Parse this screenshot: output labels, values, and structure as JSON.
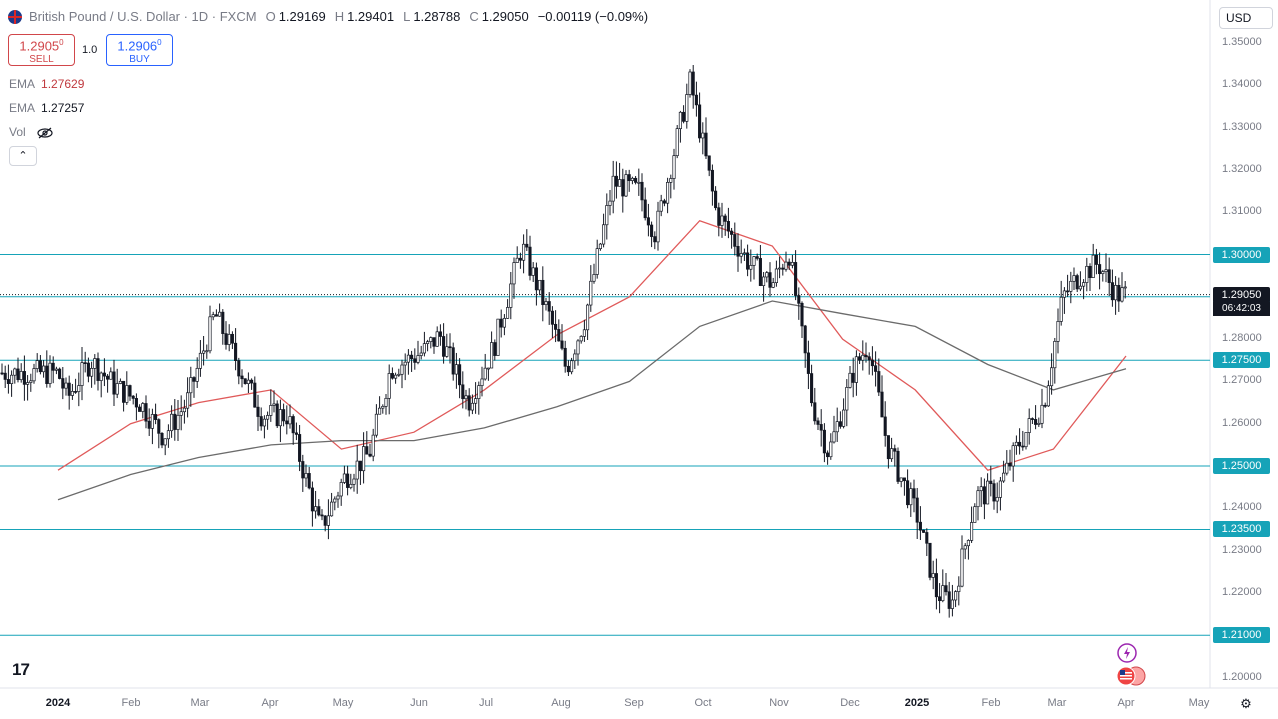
{
  "header": {
    "symbol_title": "British Pound / U.S. Dollar · 1D · FXCM",
    "open_label": "O",
    "open": "1.29169",
    "high_label": "H",
    "high": "1.29401",
    "low_label": "L",
    "low": "1.28788",
    "close_label": "C",
    "close": "1.29050",
    "change": "−0.00119 (−0.09%)"
  },
  "trade": {
    "sell_price": "1.2905",
    "sell_sup": "0",
    "sell_label": "SELL",
    "spread": "1.0",
    "buy_price": "1.2906",
    "buy_sup": "0",
    "buy_label": "BUY"
  },
  "indicators": {
    "ema1_label": "EMA",
    "ema1_value": "1.27629",
    "ema2_label": "EMA",
    "ema2_value": "1.27257",
    "vol_label": "Vol"
  },
  "currency": "USD",
  "icons": {
    "flag": "gbp-usd-flag-icon",
    "eye": "eye-hidden-icon",
    "chevron": "chevron-up-icon",
    "gear": "gear-icon",
    "logo": "tradingview-logo",
    "flash": "flash-icon",
    "flag_us": "us-flag-icon"
  },
  "colors": {
    "level_line": "#16a3b8",
    "ema_fast": "#e05a5a",
    "ema_slow": "#6b6b6b",
    "candle": "#131722",
    "badge_bg": "#16a3b8"
  },
  "logo_text": "17",
  "chart_data": {
    "type": "candlestick",
    "title": "British Pound / U.S. Dollar · 1D · FXCM",
    "y_axis": {
      "ticks": [
        "1.35000",
        "1.34000",
        "1.33000",
        "1.32000",
        "1.31000",
        "1.28000",
        "1.27000",
        "1.26000",
        "1.24000",
        "1.23000",
        "1.22000",
        "1.20000"
      ],
      "range": [
        1.195,
        1.355
      ]
    },
    "x_axis": {
      "ticks": [
        "2024",
        "Feb",
        "Mar",
        "Apr",
        "May",
        "Jun",
        "Jul",
        "Aug",
        "Sep",
        "Oct",
        "Nov",
        "Dec",
        "2025",
        "Feb",
        "Mar",
        "Apr",
        "May"
      ],
      "bold_ticks": [
        "2024",
        "2025"
      ]
    },
    "horizontal_levels": [
      {
        "value": 1.3,
        "label": "1.30000"
      },
      {
        "value": 1.29,
        "label": "1.29000"
      },
      {
        "value": 1.275,
        "label": "1.27500"
      },
      {
        "value": 1.25,
        "label": "1.25000"
      },
      {
        "value": 1.235,
        "label": "1.23500"
      },
      {
        "value": 1.21,
        "label": "1.21000"
      }
    ],
    "last_price": {
      "value": 1.2905,
      "label": "1.29050",
      "countdown": "06:42:03"
    },
    "series": [
      {
        "name": "EMA",
        "value": "1.27629",
        "color": "#e05a5a",
        "points": [
          [
            "2024-01-01",
            1.249
          ],
          [
            "2024-02-01",
            1.26
          ],
          [
            "2024-03-01",
            1.265
          ],
          [
            "2024-04-01",
            1.268
          ],
          [
            "2024-05-01",
            1.254
          ],
          [
            "2024-06-01",
            1.258
          ],
          [
            "2024-07-01",
            1.268
          ],
          [
            "2024-08-01",
            1.281
          ],
          [
            "2024-09-01",
            1.29
          ],
          [
            "2024-10-01",
            1.308
          ],
          [
            "2024-11-01",
            1.302
          ],
          [
            "2024-12-01",
            1.28
          ],
          [
            "2025-01-01",
            1.268
          ],
          [
            "2025-02-01",
            1.249
          ],
          [
            "2025-03-01",
            1.254
          ],
          [
            "2025-04-01",
            1.276
          ]
        ]
      },
      {
        "name": "EMA",
        "value": "1.27257",
        "color": "#6b6b6b",
        "points": [
          [
            "2024-01-01",
            1.242
          ],
          [
            "2024-02-01",
            1.248
          ],
          [
            "2024-03-01",
            1.252
          ],
          [
            "2024-04-01",
            1.255
          ],
          [
            "2024-05-01",
            1.256
          ],
          [
            "2024-06-01",
            1.256
          ],
          [
            "2024-07-01",
            1.259
          ],
          [
            "2024-08-01",
            1.264
          ],
          [
            "2024-09-01",
            1.27
          ],
          [
            "2024-10-01",
            1.283
          ],
          [
            "2024-11-01",
            1.289
          ],
          [
            "2024-12-01",
            1.286
          ],
          [
            "2025-01-01",
            1.283
          ],
          [
            "2025-02-01",
            1.274
          ],
          [
            "2025-03-01",
            1.268
          ],
          [
            "2025-04-01",
            1.273
          ]
        ]
      }
    ],
    "price_path": [
      [
        "2024-01-01",
        1.272
      ],
      [
        "2024-01-05",
        1.266
      ],
      [
        "2024-01-15",
        1.275
      ],
      [
        "2024-01-25",
        1.269
      ],
      [
        "2024-02-05",
        1.265
      ],
      [
        "2024-02-15",
        1.257
      ],
      [
        "2024-02-25",
        1.265
      ],
      [
        "2024-03-08",
        1.286
      ],
      [
        "2024-03-18",
        1.274
      ],
      [
        "2024-03-28",
        1.262
      ],
      [
        "2024-04-08",
        1.262
      ],
      [
        "2024-04-22",
        1.235
      ],
      [
        "2024-05-02",
        1.247
      ],
      [
        "2024-05-13",
        1.253
      ],
      [
        "2024-05-22",
        1.273
      ],
      [
        "2024-06-05",
        1.277
      ],
      [
        "2024-06-12",
        1.281
      ],
      [
        "2024-06-24",
        1.265
      ],
      [
        "2024-07-05",
        1.278
      ],
      [
        "2024-07-17",
        1.302
      ],
      [
        "2024-07-29",
        1.285
      ],
      [
        "2024-08-05",
        1.273
      ],
      [
        "2024-08-13",
        1.285
      ],
      [
        "2024-08-25",
        1.317
      ],
      [
        "2024-09-05",
        1.315
      ],
      [
        "2024-09-12",
        1.305
      ],
      [
        "2024-09-27",
        1.341
      ],
      [
        "2024-10-02",
        1.327
      ],
      [
        "2024-10-08",
        1.31
      ],
      [
        "2024-10-22",
        1.298
      ],
      [
        "2024-11-01",
        1.293
      ],
      [
        "2024-11-08",
        1.301
      ],
      [
        "2024-11-18",
        1.265
      ],
      [
        "2024-11-25",
        1.253
      ],
      [
        "2024-12-06",
        1.273
      ],
      [
        "2024-12-12",
        1.279
      ],
      [
        "2024-12-20",
        1.255
      ],
      [
        "2025-01-02",
        1.238
      ],
      [
        "2025-01-10",
        1.22
      ],
      [
        "2025-01-17",
        1.218
      ],
      [
        "2025-01-27",
        1.243
      ],
      [
        "2025-02-05",
        1.244
      ],
      [
        "2025-02-14",
        1.255
      ],
      [
        "2025-02-25",
        1.265
      ],
      [
        "2025-03-05",
        1.29
      ],
      [
        "2025-03-12",
        1.295
      ],
      [
        "2025-03-20",
        1.298
      ],
      [
        "2025-03-28",
        1.2905
      ]
    ]
  }
}
